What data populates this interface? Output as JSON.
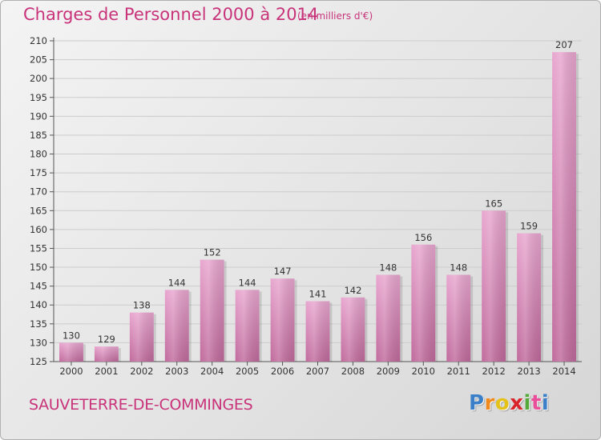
{
  "header": {
    "title": "Charges de Personnel 2000 à 2014",
    "subtitle": "(en milliers d'€)"
  },
  "footer": {
    "commune": "SAUVETERRE-DE-COMMINGES",
    "brand_letters": [
      "P",
      "r",
      "o",
      "x",
      "i",
      "t",
      "i"
    ],
    "brand_colors": [
      "#3a7fc8",
      "#f08a1c",
      "#e5c21a",
      "#d8262c",
      "#55a83a",
      "#e94e9a",
      "#3a7fc8"
    ]
  },
  "colors": {
    "bar_light": "#e8a6cf",
    "bar_dark": "#c06a9c",
    "title_pink": "#c8337a",
    "grid": "#cccccc"
  },
  "chart_data": {
    "type": "bar",
    "title": "Charges de Personnel 2000 à 2014",
    "subtitle": "(en milliers d'€)",
    "xlabel": "",
    "ylabel": "",
    "categories": [
      "2000",
      "2001",
      "2002",
      "2003",
      "2004",
      "2005",
      "2006",
      "2007",
      "2008",
      "2009",
      "2010",
      "2011",
      "2012",
      "2013",
      "2014"
    ],
    "values": [
      130,
      129,
      138,
      144,
      152,
      144,
      147,
      141,
      142,
      148,
      156,
      148,
      165,
      159,
      207
    ],
    "ylim": [
      125,
      210
    ],
    "yticks": [
      125,
      130,
      135,
      140,
      145,
      150,
      155,
      160,
      165,
      170,
      175,
      180,
      185,
      190,
      195,
      200,
      205,
      210
    ],
    "grid": true
  }
}
